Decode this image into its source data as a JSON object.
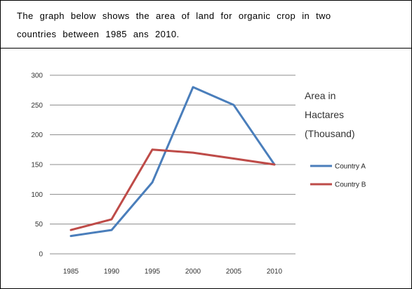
{
  "prompt": {
    "line1": "The graph below shows the area of land for organic crop in two",
    "line2": "countries between  1985 ans  2010."
  },
  "chart_data": {
    "type": "line",
    "title": "",
    "xlabel": "",
    "ylabel": "",
    "x": [
      1985,
      1990,
      1995,
      2000,
      2005,
      2010
    ],
    "series": [
      {
        "name": "Country A",
        "color": "#4a7ebb",
        "values": [
          30,
          40,
          120,
          280,
          250,
          150
        ]
      },
      {
        "name": "Country B",
        "color": "#be4b48",
        "values": [
          40,
          58,
          175,
          170,
          160,
          150
        ]
      }
    ],
    "ylim": [
      0,
      300
    ],
    "yticks": [
      0,
      50,
      100,
      150,
      200,
      250,
      300
    ],
    "xtick_labels": [
      "1985",
      "1990",
      "1995",
      "2000",
      "2005",
      "2010"
    ],
    "ytick_labels": [
      "0",
      "50",
      "100",
      "150",
      "200",
      "250",
      "300"
    ],
    "grid": true,
    "legend": "right",
    "annotation": [
      "Area in",
      "Hactares",
      "(Thousand)"
    ],
    "gridline_color": "#8c8c8c"
  }
}
